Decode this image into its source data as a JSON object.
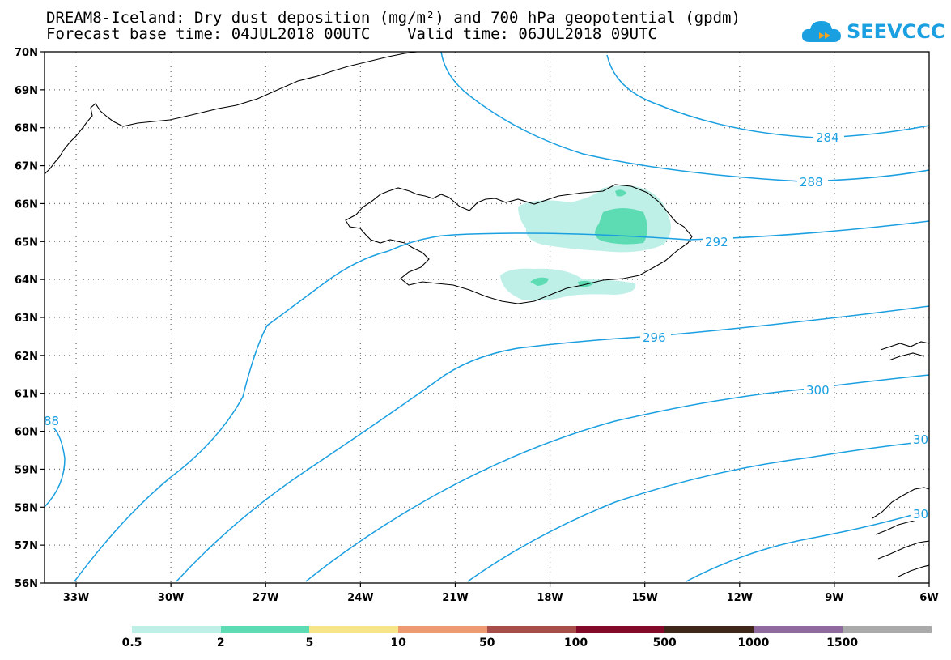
{
  "header": {
    "title_line1": "DREAM8-Iceland: Dry dust deposition (mg/m²) and 700 hPa geopotential (gpdm)",
    "title_line2": "Forecast base time: 04JUL2018 00UTC    Valid time: 06JUL2018 09UTC"
  },
  "logo": {
    "text": "SEEVCCC",
    "icon": "cloud-icon",
    "color": "#1a9fe0"
  },
  "map": {
    "lat_labels": [
      "70N",
      "69N",
      "68N",
      "67N",
      "66N",
      "65N",
      "64N",
      "63N",
      "62N",
      "61N",
      "60N",
      "59N",
      "58N",
      "57N",
      "56N"
    ],
    "lon_labels": [
      "33W",
      "30W",
      "27W",
      "24W",
      "21W",
      "18W",
      "15W",
      "12W",
      "9W",
      "6W"
    ],
    "contour_color": "#1a9fe0",
    "contour_labels": [
      "284",
      "288",
      "292",
      "296",
      "300",
      "30",
      "30",
      "88"
    ]
  },
  "legend": {
    "colors": [
      "#bff0e8",
      "#5ddcb4",
      "#f7e58a",
      "#ee9a70",
      "#a84e4a",
      "#820a28",
      "#3e2718",
      "#8e6a9e",
      "#aaaaaa"
    ],
    "labels": [
      "0.5",
      "2",
      "5",
      "10",
      "50",
      "100",
      "500",
      "1000",
      "1500"
    ]
  }
}
